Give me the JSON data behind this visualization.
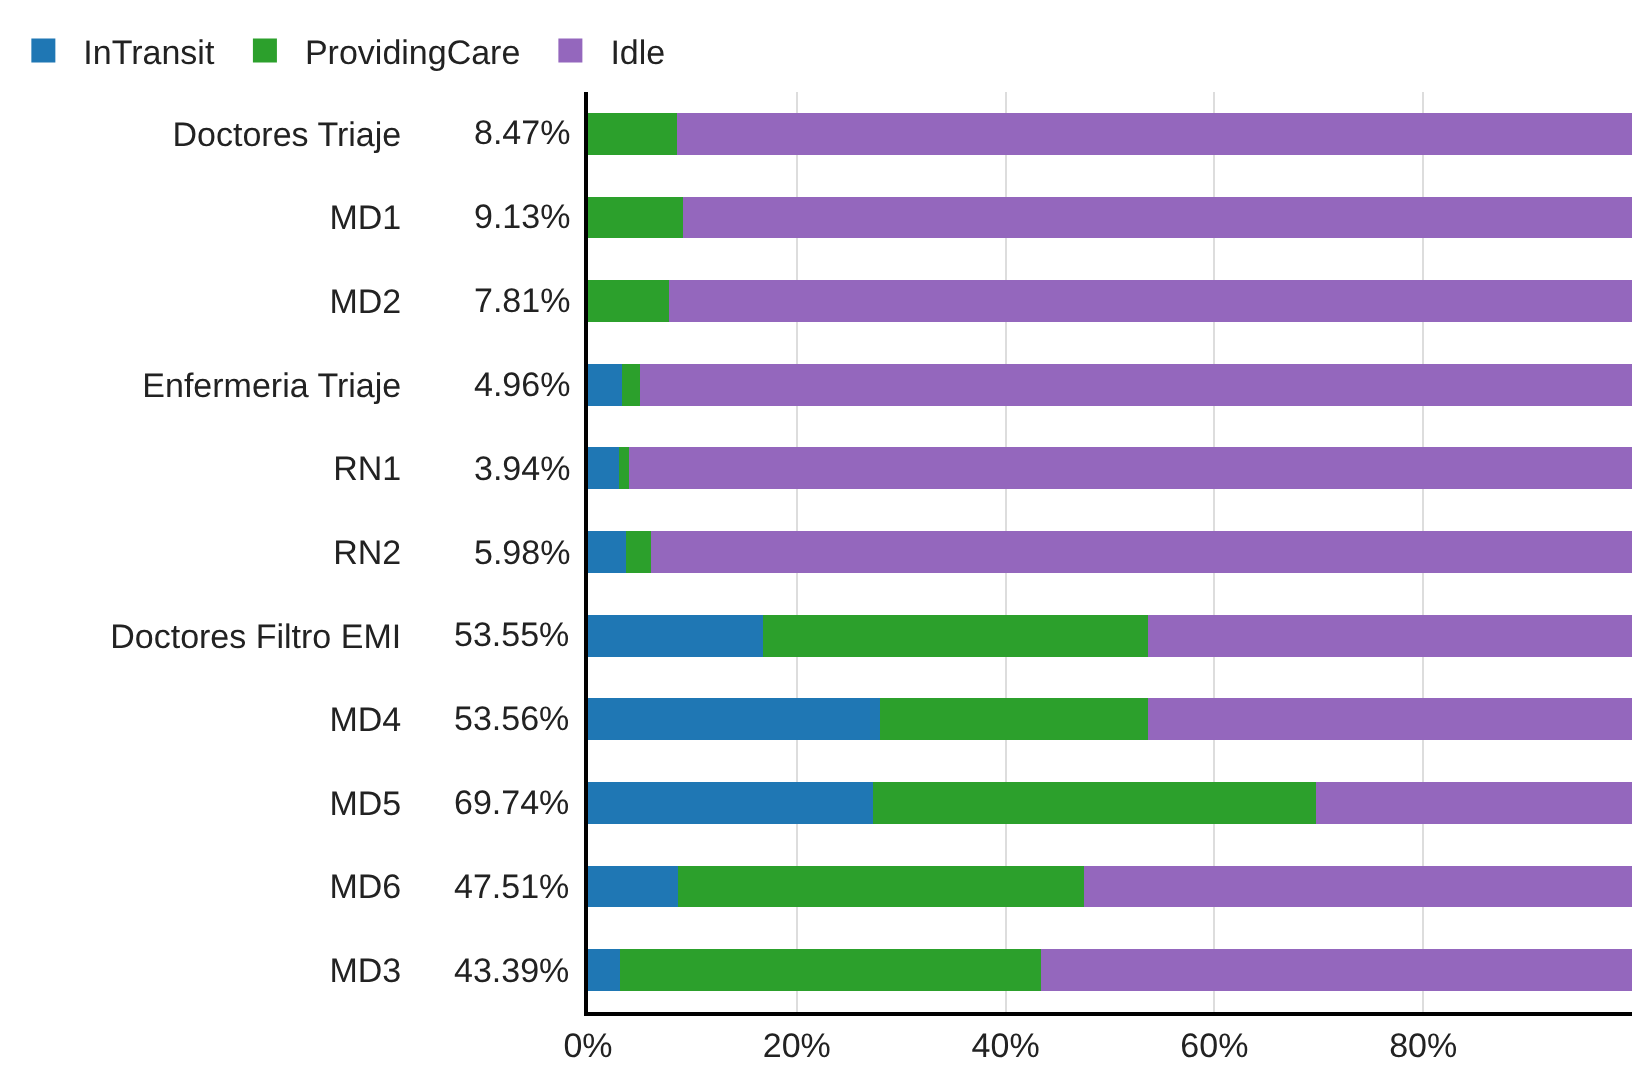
{
  "chart_data": {
    "type": "bar",
    "orientation": "horizontal",
    "stacked": true,
    "categories": [
      "Doctores Triaje",
      "MD1",
      "MD2",
      "Enfermeria Triaje",
      "RN1",
      "RN2",
      "Doctores Filtro EMI",
      "MD4",
      "MD5",
      "MD6",
      "MD3"
    ],
    "series": [
      {
        "name": "InTransit",
        "color": "#1f77b4",
        "values": [
          0,
          0,
          0,
          3.3,
          3.0,
          3.6,
          16.8,
          28.0,
          27.3,
          8.6,
          3.1
        ]
      },
      {
        "name": "ProvidingCare",
        "color": "#2ca02c",
        "values": [
          8.5,
          9.1,
          7.8,
          1.7,
          0.9,
          2.4,
          36.8,
          25.6,
          42.4,
          38.9,
          40.3
        ]
      },
      {
        "name": "Idle",
        "color": "#9467bd",
        "values": [
          91.5,
          90.9,
          92.2,
          95.0,
          96.1,
          94.0,
          46.4,
          46.4,
          30.3,
          52.5,
          56.6
        ]
      }
    ],
    "annotations": [
      "8.47%",
      "9.13%",
      "7.81%",
      "4.96%",
      "3.94%",
      "5.98%",
      "53.55%",
      "53.56%",
      "69.74%",
      "47.51%",
      "43.39%"
    ],
    "xlim": [
      0,
      100
    ],
    "xticks": [
      {
        "value": 0,
        "label": "0%"
      },
      {
        "value": 20,
        "label": "20%"
      },
      {
        "value": 40,
        "label": "40%"
      },
      {
        "value": 60,
        "label": "60%"
      },
      {
        "value": 80,
        "label": "80%"
      }
    ],
    "grid": "x",
    "legend": "top left"
  }
}
